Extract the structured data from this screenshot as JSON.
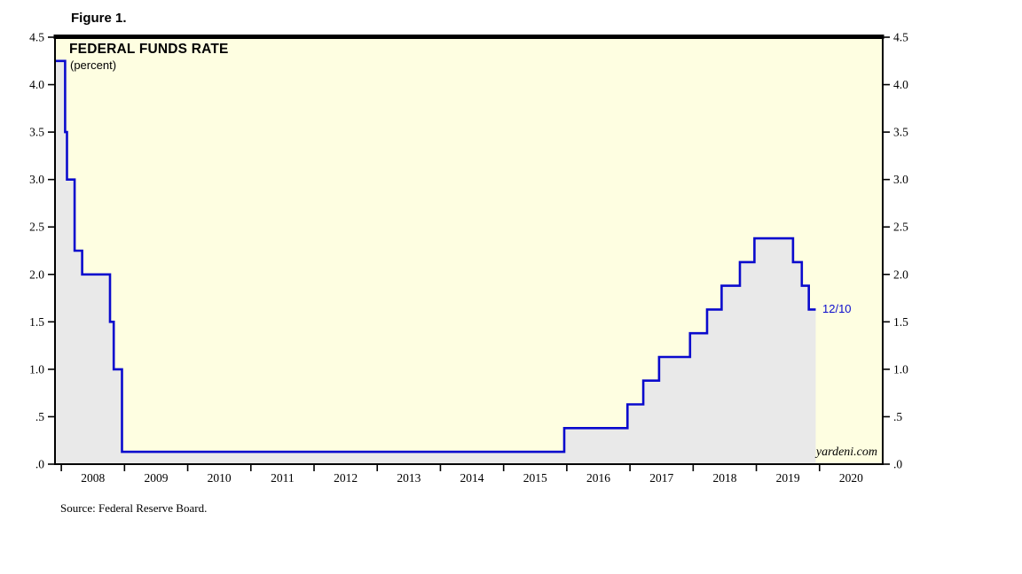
{
  "figure_label": "Figure 1.",
  "source_note": "Source: Federal Reserve Board.",
  "watermark": "yardeni.com",
  "chart_data": {
    "type": "line",
    "step": true,
    "title": "FEDERAL FUNDS RATE",
    "subtitle": "(percent)",
    "legend_position": "none",
    "grid": false,
    "xlim": [
      2007.9,
      2021.0
    ],
    "ylim": [
      0,
      4.5
    ],
    "plot_bg_color": "#FEFEE1",
    "area_fill_color": "#E9E9E9",
    "line_color": "#0A0ACD",
    "border_color": "#000000",
    "series": [
      {
        "name": "Federal Funds Rate",
        "points": [
          [
            2007.9,
            4.25
          ],
          [
            2008.06,
            3.5
          ],
          [
            2008.09,
            3.0
          ],
          [
            2008.21,
            2.25
          ],
          [
            2008.33,
            2.0
          ],
          [
            2008.77,
            1.5
          ],
          [
            2008.83,
            1.0
          ],
          [
            2008.96,
            0.13
          ],
          [
            2015.96,
            0.38
          ],
          [
            2016.96,
            0.63
          ],
          [
            2017.21,
            0.88
          ],
          [
            2017.46,
            1.13
          ],
          [
            2017.95,
            1.38
          ],
          [
            2018.22,
            1.63
          ],
          [
            2018.45,
            1.88
          ],
          [
            2018.74,
            2.13
          ],
          [
            2018.97,
            2.38
          ],
          [
            2019.58,
            2.13
          ],
          [
            2019.72,
            1.88
          ],
          [
            2019.83,
            1.63
          ],
          [
            2019.94,
            1.63
          ]
        ]
      }
    ],
    "annotation": {
      "text": "12/10",
      "x": 2019.96,
      "y": 1.63
    },
    "yticks": {
      "values": [
        0,
        0.5,
        1.0,
        1.5,
        2.0,
        2.5,
        3.0,
        3.5,
        4.0,
        4.5
      ],
      "labels": [
        ".0",
        ".5",
        "1.0",
        "1.5",
        "2.0",
        "2.5",
        "3.0",
        "3.5",
        "4.0",
        "4.5"
      ]
    },
    "xticks": {
      "boundary_years": [
        2008,
        2009,
        2010,
        2011,
        2012,
        2013,
        2014,
        2015,
        2016,
        2017,
        2018,
        2019,
        2020
      ],
      "label_years": [
        "2008",
        "2009",
        "2010",
        "2011",
        "2012",
        "2013",
        "2014",
        "2015",
        "2016",
        "2017",
        "2018",
        "2019",
        "2020"
      ]
    }
  }
}
